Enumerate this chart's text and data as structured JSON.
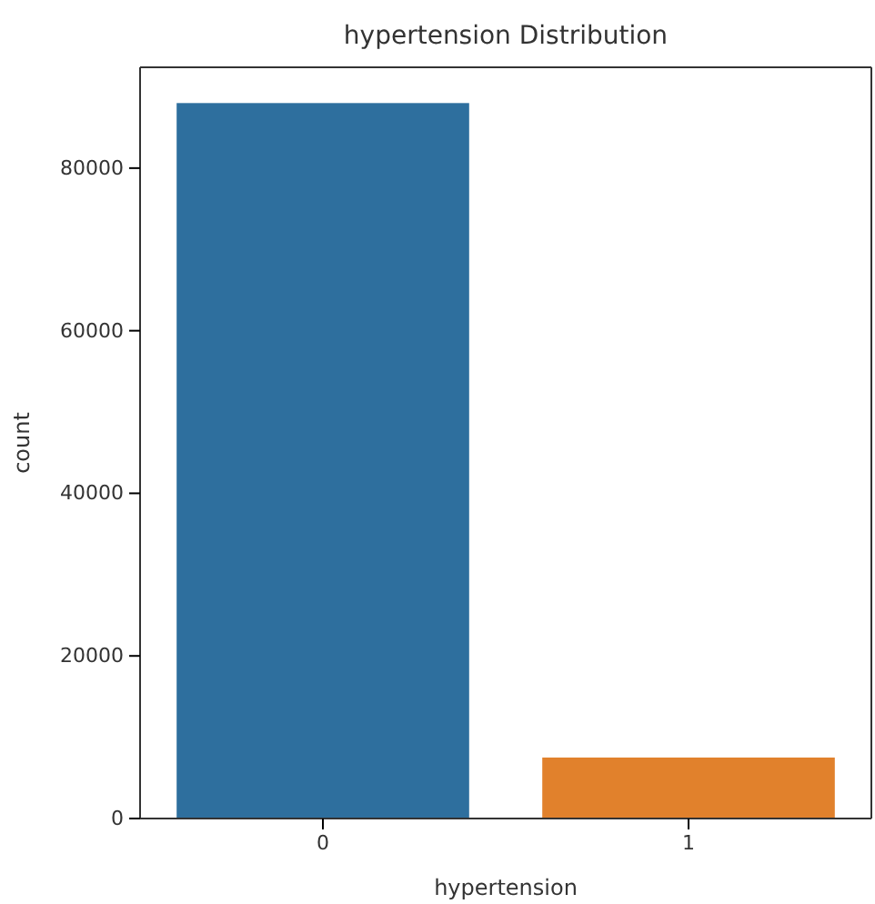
{
  "chart_data": {
    "type": "bar",
    "title": "hypertension Distribution",
    "xlabel": "hypertension",
    "ylabel": "count",
    "categories": [
      "0",
      "1"
    ],
    "colors": [
      "#2e6f9e",
      "#e1812c"
    ],
    "values": [
      88000,
      7500
    ],
    "ylim": [
      0,
      92400
    ],
    "yticks": [
      0,
      20000,
      40000,
      60000,
      80000
    ],
    "grid": false
  }
}
